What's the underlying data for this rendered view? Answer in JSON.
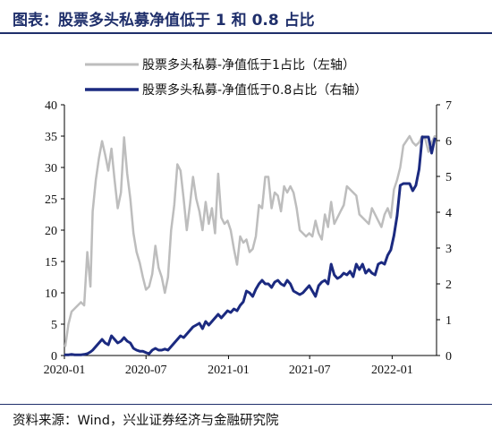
{
  "header": {
    "title": "图表：股票多头私募净值低于 1 和 0.8 占比"
  },
  "footer": {
    "source": "资料来源：Wind，兴业证券经济与金融研究院"
  },
  "colors": {
    "series1": "#bdbdbd",
    "series2": "#1b2a80",
    "axis": "#000000"
  },
  "chart_data": {
    "type": "line",
    "title": "",
    "xlabel": "",
    "ylabel": "",
    "ylim": [
      0,
      40
    ],
    "y2lim": [
      0,
      7
    ],
    "yticks": [
      0,
      5,
      10,
      15,
      20,
      25,
      30,
      35,
      40
    ],
    "y2ticks": [
      0,
      1,
      2,
      3,
      4,
      5,
      6,
      7
    ],
    "xlim": [
      "2020-01-01",
      "2022-04-10"
    ],
    "xticks": [
      {
        "date": "2020-01-01",
        "label": "2020-01"
      },
      {
        "date": "2020-07-01",
        "label": "2020-07"
      },
      {
        "date": "2021-01-01",
        "label": "2021-01"
      },
      {
        "date": "2021-07-01",
        "label": "2021-07"
      },
      {
        "date": "2022-01-01",
        "label": "2022-01"
      }
    ],
    "legend_position": "top-right",
    "series": [
      {
        "name": "股票多头私募-净值低于1占比（左轴）",
        "axis": "left",
        "color": "#bdbdbd",
        "points": [
          [
            "2020-01-03",
            1.5
          ],
          [
            "2020-01-10",
            5
          ],
          [
            "2020-01-17",
            7
          ],
          [
            "2020-01-24",
            7.5
          ],
          [
            "2020-02-07",
            8.5
          ],
          [
            "2020-02-14",
            8
          ],
          [
            "2020-02-21",
            16.5
          ],
          [
            "2020-02-28",
            11
          ],
          [
            "2020-03-04",
            23
          ],
          [
            "2020-03-11",
            28
          ],
          [
            "2020-03-18",
            31.5
          ],
          [
            "2020-03-25",
            34.2
          ],
          [
            "2020-04-01",
            32
          ],
          [
            "2020-04-08",
            29.5
          ],
          [
            "2020-04-15",
            33
          ],
          [
            "2020-04-22",
            28
          ],
          [
            "2020-04-29",
            23.5
          ],
          [
            "2020-05-06",
            26
          ],
          [
            "2020-05-13",
            34.8
          ],
          [
            "2020-05-20",
            29
          ],
          [
            "2020-05-27",
            25
          ],
          [
            "2020-06-03",
            19.5
          ],
          [
            "2020-06-10",
            16.5
          ],
          [
            "2020-06-17",
            14.8
          ],
          [
            "2020-06-24",
            12.5
          ],
          [
            "2020-07-01",
            10.5
          ],
          [
            "2020-07-08",
            11
          ],
          [
            "2020-07-15",
            13
          ],
          [
            "2020-07-22",
            17.5
          ],
          [
            "2020-07-29",
            14
          ],
          [
            "2020-08-05",
            12.5
          ],
          [
            "2020-08-12",
            10
          ],
          [
            "2020-08-19",
            12.5
          ],
          [
            "2020-08-26",
            20
          ],
          [
            "2020-09-02",
            24
          ],
          [
            "2020-09-09",
            30.5
          ],
          [
            "2020-09-16",
            29.5
          ],
          [
            "2020-09-23",
            25
          ],
          [
            "2020-09-30",
            20
          ],
          [
            "2020-10-07",
            24
          ],
          [
            "2020-10-14",
            28.5
          ],
          [
            "2020-10-21",
            25
          ],
          [
            "2020-10-28",
            23
          ],
          [
            "2020-11-04",
            20
          ],
          [
            "2020-11-11",
            24.5
          ],
          [
            "2020-11-18",
            21
          ],
          [
            "2020-11-25",
            23.5
          ],
          [
            "2020-12-02",
            19.5
          ],
          [
            "2020-12-09",
            29
          ],
          [
            "2020-12-16",
            22
          ],
          [
            "2020-12-23",
            21
          ],
          [
            "2020-12-30",
            21.5
          ],
          [
            "2021-01-06",
            20
          ],
          [
            "2021-01-13",
            17
          ],
          [
            "2021-01-20",
            14.5
          ],
          [
            "2021-01-27",
            19
          ],
          [
            "2021-02-03",
            18
          ],
          [
            "2021-02-10",
            18.5
          ],
          [
            "2021-02-17",
            16.5
          ],
          [
            "2021-02-24",
            17
          ],
          [
            "2021-03-03",
            19
          ],
          [
            "2021-03-10",
            24
          ],
          [
            "2021-03-17",
            23.5
          ],
          [
            "2021-03-24",
            28.5
          ],
          [
            "2021-03-31",
            28.5
          ],
          [
            "2021-04-07",
            23.5
          ],
          [
            "2021-04-14",
            26
          ],
          [
            "2021-04-21",
            25.5
          ],
          [
            "2021-04-28",
            23
          ],
          [
            "2021-05-05",
            27
          ],
          [
            "2021-05-12",
            26
          ],
          [
            "2021-05-19",
            27
          ],
          [
            "2021-05-26",
            26
          ],
          [
            "2021-06-02",
            23.5
          ],
          [
            "2021-06-09",
            20
          ],
          [
            "2021-06-16",
            19.5
          ],
          [
            "2021-06-23",
            19
          ],
          [
            "2021-06-30",
            19.5
          ],
          [
            "2021-07-07",
            19
          ],
          [
            "2021-07-14",
            21.5
          ],
          [
            "2021-07-21",
            19.5
          ],
          [
            "2021-07-28",
            18.5
          ],
          [
            "2021-08-04",
            22.5
          ],
          [
            "2021-08-11",
            20.5
          ],
          [
            "2021-08-18",
            24.5
          ],
          [
            "2021-08-25",
            21
          ],
          [
            "2021-09-01",
            22
          ],
          [
            "2021-09-08",
            23
          ],
          [
            "2021-09-15",
            24
          ],
          [
            "2021-09-22",
            27
          ],
          [
            "2021-09-29",
            26.5
          ],
          [
            "2021-10-06",
            26
          ],
          [
            "2021-10-13",
            25.5
          ],
          [
            "2021-10-20",
            22.5
          ],
          [
            "2021-10-27",
            22
          ],
          [
            "2021-11-03",
            21.5
          ],
          [
            "2021-11-10",
            21
          ],
          [
            "2021-11-17",
            23.5
          ],
          [
            "2021-11-24",
            22.5
          ],
          [
            "2021-12-01",
            21.5
          ],
          [
            "2021-12-08",
            20.5
          ],
          [
            "2021-12-15",
            22.5
          ],
          [
            "2021-12-22",
            23.5
          ],
          [
            "2021-12-29",
            22
          ],
          [
            "2022-01-05",
            26.5
          ],
          [
            "2022-01-12",
            28
          ],
          [
            "2022-01-19",
            30
          ],
          [
            "2022-01-26",
            33.5
          ],
          [
            "2022-02-09",
            35
          ],
          [
            "2022-02-16",
            34
          ],
          [
            "2022-02-23",
            33.5
          ],
          [
            "2022-03-02",
            34
          ],
          [
            "2022-03-09",
            35
          ],
          [
            "2022-03-16",
            34.5
          ],
          [
            "2022-03-23",
            32.5
          ],
          [
            "2022-03-30",
            34
          ],
          [
            "2022-04-06",
            35
          ]
        ]
      },
      {
        "name": "股票多头私募-净值低于0.8占比（右轴）",
        "axis": "right",
        "color": "#1b2a80",
        "points": [
          [
            "2020-01-03",
            0.02
          ],
          [
            "2020-01-10",
            0.02
          ],
          [
            "2020-01-17",
            0.03
          ],
          [
            "2020-01-24",
            0.02
          ],
          [
            "2020-02-07",
            0.02
          ],
          [
            "2020-02-14",
            0.03
          ],
          [
            "2020-02-21",
            0.05
          ],
          [
            "2020-02-28",
            0.1
          ],
          [
            "2020-03-04",
            0.15
          ],
          [
            "2020-03-11",
            0.25
          ],
          [
            "2020-03-18",
            0.35
          ],
          [
            "2020-03-25",
            0.45
          ],
          [
            "2020-04-01",
            0.35
          ],
          [
            "2020-04-08",
            0.3
          ],
          [
            "2020-04-15",
            0.55
          ],
          [
            "2020-04-22",
            0.45
          ],
          [
            "2020-04-29",
            0.35
          ],
          [
            "2020-05-06",
            0.4
          ],
          [
            "2020-05-13",
            0.5
          ],
          [
            "2020-05-20",
            0.4
          ],
          [
            "2020-05-27",
            0.35
          ],
          [
            "2020-06-03",
            0.2
          ],
          [
            "2020-06-10",
            0.15
          ],
          [
            "2020-06-17",
            0.12
          ],
          [
            "2020-06-24",
            0.12
          ],
          [
            "2020-07-01",
            0.08
          ],
          [
            "2020-07-08",
            0.05
          ],
          [
            "2020-07-15",
            0.15
          ],
          [
            "2020-07-22",
            0.2
          ],
          [
            "2020-07-29",
            0.15
          ],
          [
            "2020-08-05",
            0.15
          ],
          [
            "2020-08-12",
            0.18
          ],
          [
            "2020-08-19",
            0.15
          ],
          [
            "2020-08-26",
            0.25
          ],
          [
            "2020-09-02",
            0.35
          ],
          [
            "2020-09-09",
            0.45
          ],
          [
            "2020-09-16",
            0.55
          ],
          [
            "2020-09-23",
            0.5
          ],
          [
            "2020-09-30",
            0.6
          ],
          [
            "2020-10-07",
            0.7
          ],
          [
            "2020-10-14",
            0.8
          ],
          [
            "2020-10-21",
            0.85
          ],
          [
            "2020-10-28",
            0.9
          ],
          [
            "2020-11-04",
            0.75
          ],
          [
            "2020-11-11",
            0.95
          ],
          [
            "2020-11-18",
            0.85
          ],
          [
            "2020-11-25",
            0.95
          ],
          [
            "2020-12-02",
            1.05
          ],
          [
            "2020-12-09",
            1.15
          ],
          [
            "2020-12-16",
            1.05
          ],
          [
            "2020-12-23",
            1.15
          ],
          [
            "2020-12-30",
            1.25
          ],
          [
            "2021-01-06",
            1.2
          ],
          [
            "2021-01-13",
            1.3
          ],
          [
            "2021-01-20",
            1.25
          ],
          [
            "2021-01-27",
            1.4
          ],
          [
            "2021-02-03",
            1.5
          ],
          [
            "2021-02-10",
            1.8
          ],
          [
            "2021-02-17",
            1.75
          ],
          [
            "2021-02-24",
            1.65
          ],
          [
            "2021-03-03",
            1.85
          ],
          [
            "2021-03-10",
            2.0
          ],
          [
            "2021-03-17",
            2.1
          ],
          [
            "2021-03-24",
            2.0
          ],
          [
            "2021-03-31",
            2.0
          ],
          [
            "2021-04-07",
            1.9
          ],
          [
            "2021-04-14",
            2.05
          ],
          [
            "2021-04-21",
            2.1
          ],
          [
            "2021-04-28",
            2.0
          ],
          [
            "2021-05-05",
            1.95
          ],
          [
            "2021-05-12",
            2.1
          ],
          [
            "2021-05-19",
            2.0
          ],
          [
            "2021-05-26",
            1.8
          ],
          [
            "2021-06-02",
            1.75
          ],
          [
            "2021-06-09",
            1.7
          ],
          [
            "2021-06-16",
            1.75
          ],
          [
            "2021-06-23",
            1.85
          ],
          [
            "2021-06-30",
            1.95
          ],
          [
            "2021-07-07",
            1.8
          ],
          [
            "2021-07-14",
            1.65
          ],
          [
            "2021-07-21",
            1.95
          ],
          [
            "2021-07-28",
            2.05
          ],
          [
            "2021-08-04",
            2.1
          ],
          [
            "2021-08-11",
            2.0
          ],
          [
            "2021-08-18",
            2.55
          ],
          [
            "2021-08-25",
            2.25
          ],
          [
            "2021-09-01",
            2.15
          ],
          [
            "2021-09-08",
            2.2
          ],
          [
            "2021-09-15",
            2.3
          ],
          [
            "2021-09-22",
            2.25
          ],
          [
            "2021-09-29",
            2.35
          ],
          [
            "2021-10-06",
            2.2
          ],
          [
            "2021-10-13",
            2.55
          ],
          [
            "2021-10-20",
            2.4
          ],
          [
            "2021-10-27",
            2.55
          ],
          [
            "2021-11-03",
            2.3
          ],
          [
            "2021-11-10",
            2.4
          ],
          [
            "2021-11-17",
            2.3
          ],
          [
            "2021-11-24",
            2.25
          ],
          [
            "2021-12-01",
            2.55
          ],
          [
            "2021-12-08",
            2.6
          ],
          [
            "2021-12-15",
            2.55
          ],
          [
            "2021-12-22",
            2.8
          ],
          [
            "2021-12-29",
            2.95
          ],
          [
            "2022-01-05",
            3.35
          ],
          [
            "2022-01-12",
            3.9
          ],
          [
            "2022-01-19",
            4.75
          ],
          [
            "2022-01-26",
            4.8
          ],
          [
            "2022-02-09",
            4.8
          ],
          [
            "2022-02-16",
            4.6
          ],
          [
            "2022-02-23",
            4.75
          ],
          [
            "2022-03-02",
            5.2
          ],
          [
            "2022-03-09",
            6.1
          ],
          [
            "2022-03-16",
            6.1
          ],
          [
            "2022-03-23",
            6.1
          ],
          [
            "2022-03-30",
            5.65
          ],
          [
            "2022-04-06",
            6.05
          ]
        ]
      }
    ]
  }
}
